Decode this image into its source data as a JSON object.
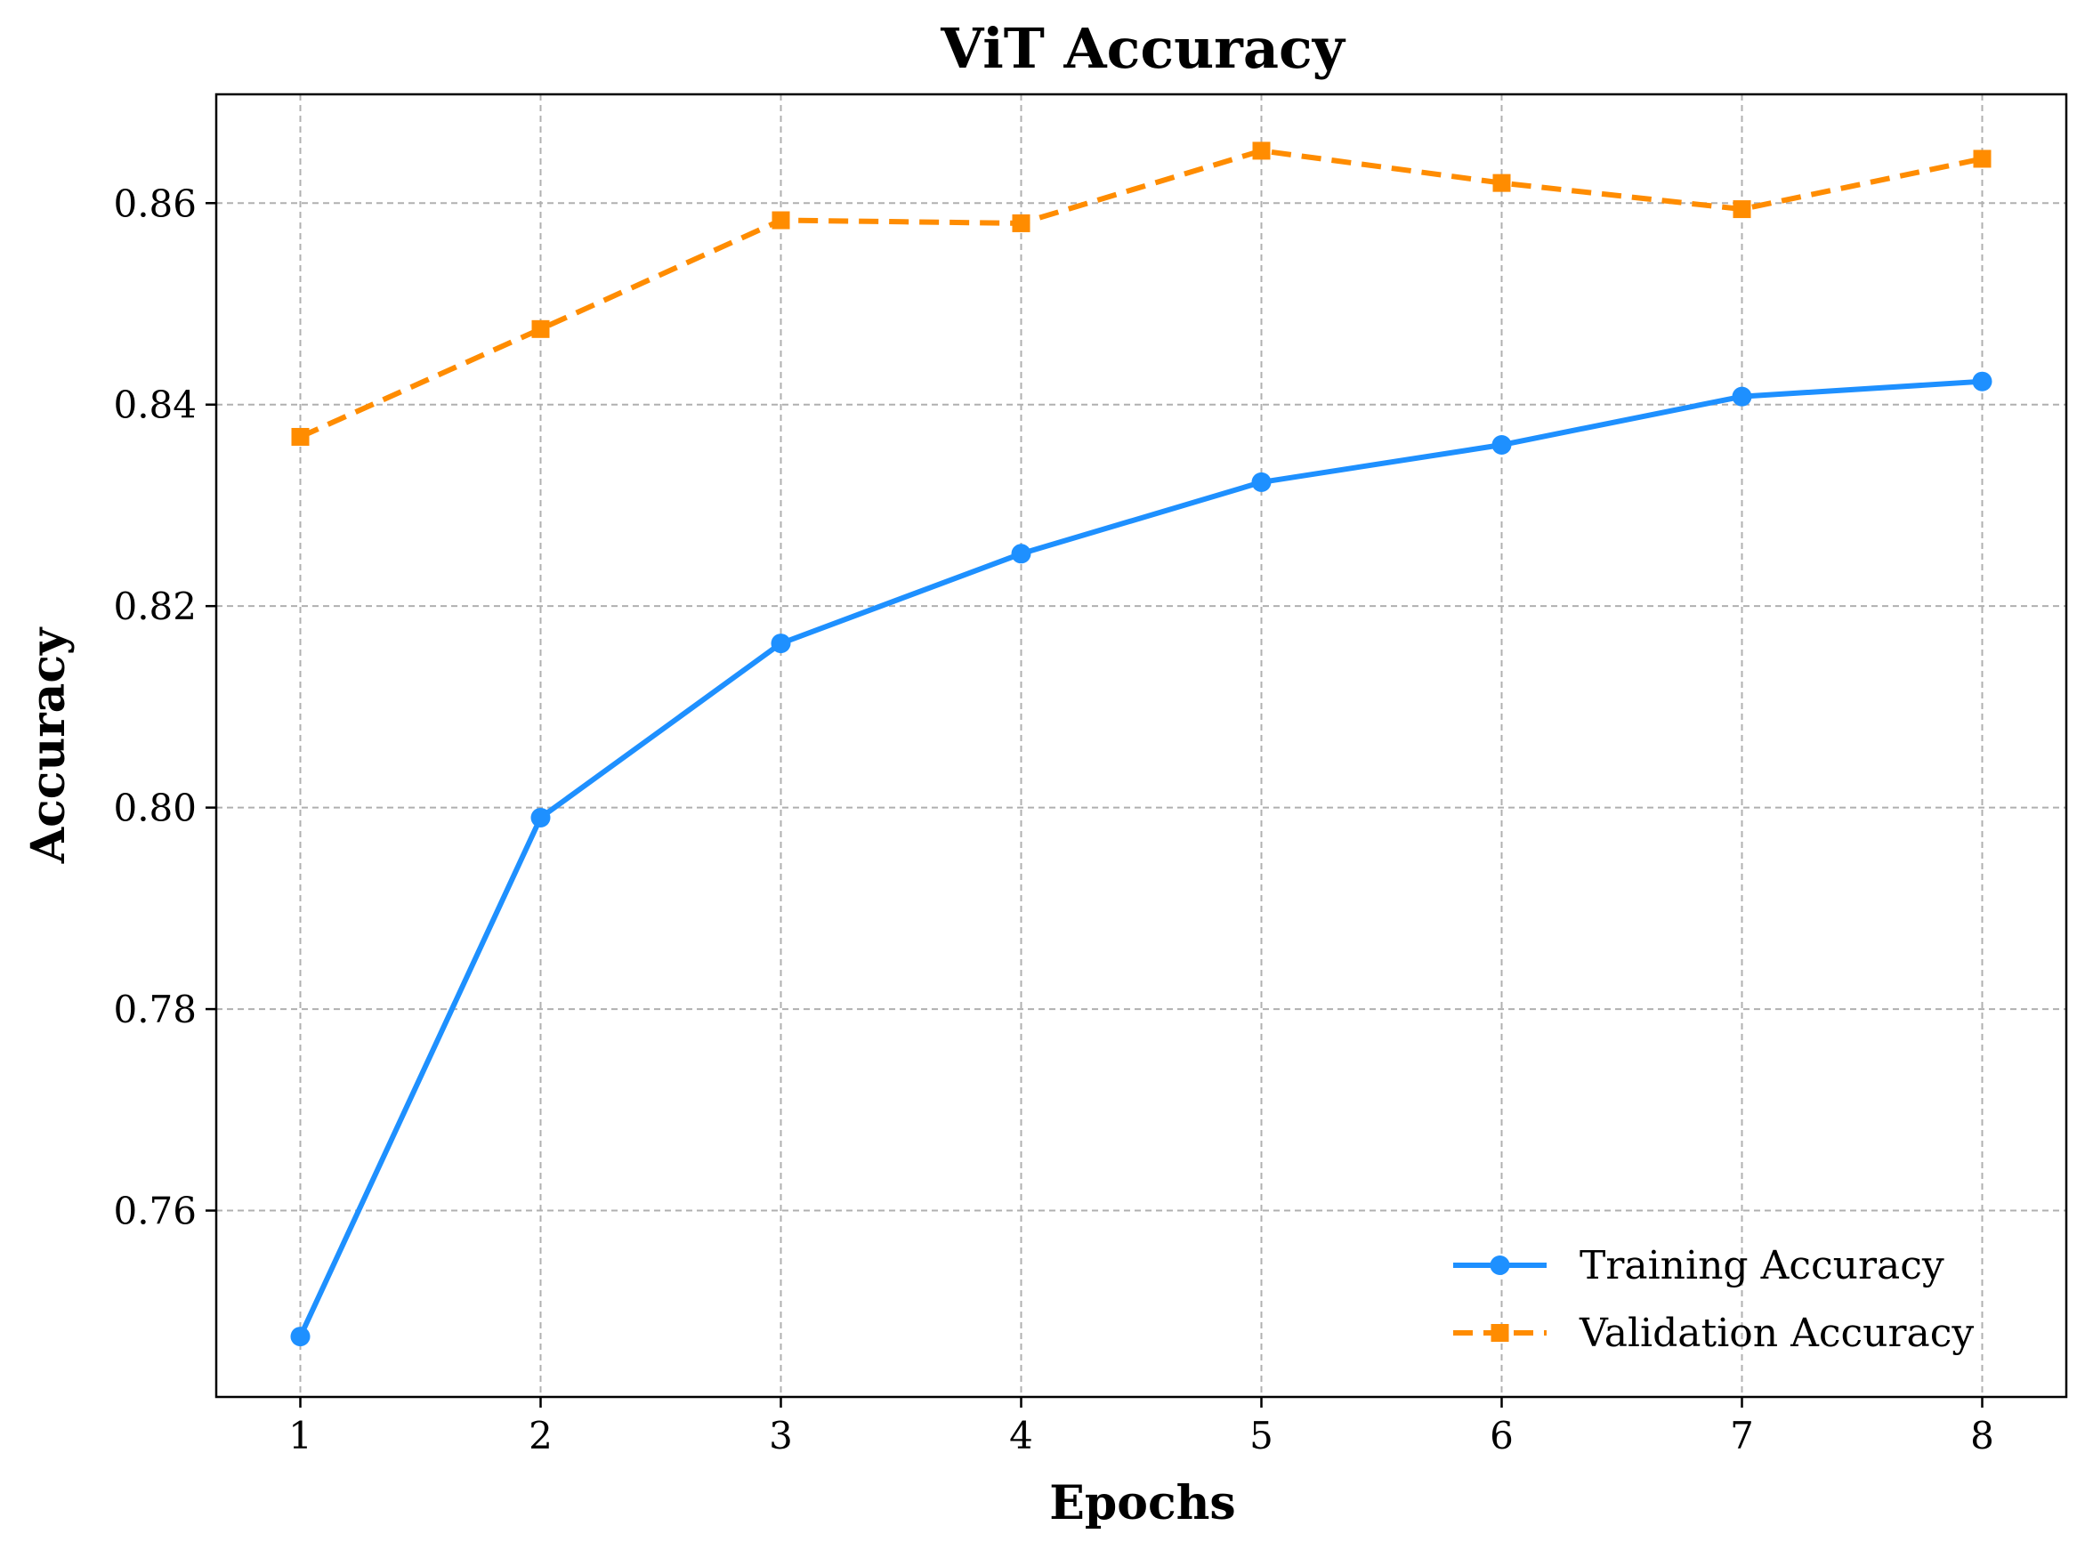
{
  "chart_data": {
    "type": "line",
    "title": "ViT Accuracy",
    "xlabel": "Epochs",
    "ylabel": "Accuracy",
    "x": [
      1,
      2,
      3,
      4,
      5,
      6,
      7,
      8
    ],
    "xlim": [
      0.65,
      8.35
    ],
    "ylim": [
      0.7415,
      0.8708
    ],
    "xticks": [
      1,
      2,
      3,
      4,
      5,
      6,
      7,
      8
    ],
    "xtick_labels": [
      "1",
      "2",
      "3",
      "4",
      "5",
      "6",
      "7",
      "8"
    ],
    "yticks": [
      0.76,
      0.78,
      0.8,
      0.82,
      0.84,
      0.86
    ],
    "ytick_labels": [
      "0.76",
      "0.78",
      "0.80",
      "0.82",
      "0.84",
      "0.86"
    ],
    "grid": true,
    "legend_position": "lower-right",
    "series": [
      {
        "name": "Training Accuracy",
        "values": [
          0.7475,
          0.799,
          0.8163,
          0.8252,
          0.8323,
          0.836,
          0.8408,
          0.8423
        ],
        "color": "#1E90FF",
        "line_style": "solid",
        "marker": "circle"
      },
      {
        "name": "Validation Accuracy",
        "values": [
          0.8368,
          0.8475,
          0.8583,
          0.858,
          0.8652,
          0.862,
          0.8594,
          0.8644
        ],
        "color": "#FF8C00",
        "line_style": "dashed",
        "marker": "square"
      }
    ]
  }
}
